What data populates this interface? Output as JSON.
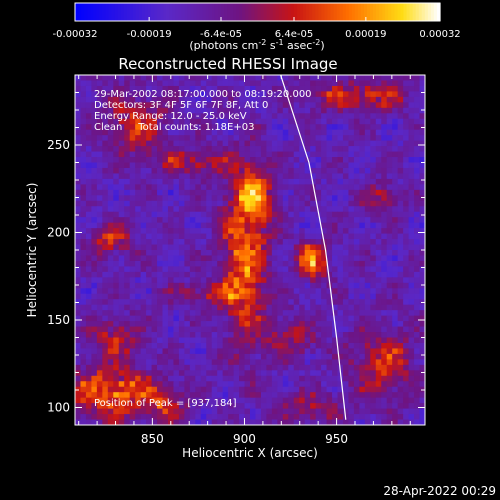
{
  "chart_data": {
    "type": "heatmap",
    "title": "Reconstructed RHESSI Image",
    "xlabel": "Heliocentric X (arcsec)",
    "ylabel": "Heliocentric Y (arcsec)",
    "xlim": [
      808,
      998
    ],
    "ylim": [
      90,
      290
    ],
    "xticks": [
      850,
      900,
      950
    ],
    "yticks": [
      100,
      150,
      200,
      250
    ],
    "colorbar": {
      "range": [
        -0.00032,
        0.00032
      ],
      "tick_values": [
        -0.00032,
        -0.00019,
        -6.4e-05,
        6.4e-05,
        0.00019,
        0.00032
      ],
      "tick_labels": [
        "-0.00032",
        "-0.00019",
        "-6.4e-05",
        "6.4e-05",
        "0.00019",
        "0.00032"
      ],
      "unit_parts": [
        "(photons cm",
        "-2",
        " s",
        "-1",
        " asec",
        "-2",
        ")"
      ]
    },
    "annotations": [
      "29-Mar-2002 08:17:00.000 to 08:19:20.000",
      "Detectors: 3F 4F 5F 6F 7F 8F, Att 0",
      "Energy Range: 12.0 - 25.0 keV",
      "Clean     Total counts: 1.18E+03",
      "Position of Peak = [937,184]"
    ],
    "peak_position": [
      937,
      184
    ],
    "bright_regions": [
      {
        "x": 900,
        "y": 185,
        "sx": 9,
        "sy": 34,
        "amp": 0.00026
      },
      {
        "x": 906,
        "y": 222,
        "sx": 7,
        "sy": 10,
        "amp": 0.00022
      },
      {
        "x": 937,
        "y": 184,
        "sx": 6,
        "sy": 7,
        "amp": 0.00032
      },
      {
        "x": 880,
        "y": 165,
        "sx": 14,
        "sy": 4,
        "amp": 0.00015
      },
      {
        "x": 828,
        "y": 108,
        "sx": 18,
        "sy": 10,
        "amp": 0.00028
      },
      {
        "x": 830,
        "y": 140,
        "sx": 9,
        "sy": 8,
        "amp": 0.00018
      },
      {
        "x": 828,
        "y": 195,
        "sx": 8,
        "sy": 6,
        "amp": 0.0002
      },
      {
        "x": 842,
        "y": 262,
        "sx": 12,
        "sy": 12,
        "amp": 0.0002
      },
      {
        "x": 872,
        "y": 240,
        "sx": 15,
        "sy": 5,
        "amp": 0.00017
      },
      {
        "x": 963,
        "y": 278,
        "sx": 20,
        "sy": 6,
        "amp": 0.0002
      },
      {
        "x": 975,
        "y": 220,
        "sx": 7,
        "sy": 6,
        "amp": 0.00016
      },
      {
        "x": 975,
        "y": 125,
        "sx": 12,
        "sy": 14,
        "amp": 0.0002
      },
      {
        "x": 925,
        "y": 140,
        "sx": 10,
        "sy": 8,
        "amp": 0.00015
      },
      {
        "x": 935,
        "y": 100,
        "sx": 12,
        "sy": 6,
        "amp": 0.00014
      },
      {
        "x": 858,
        "y": 100,
        "sx": 8,
        "sy": 8,
        "amp": 0.00014
      }
    ],
    "limb_curve": [
      [
        919,
        292
      ],
      [
        935,
        240
      ],
      [
        944,
        190
      ],
      [
        950,
        140
      ],
      [
        955,
        93
      ]
    ]
  },
  "footer": {
    "timestamp": "28-Apr-2022 00:29"
  }
}
